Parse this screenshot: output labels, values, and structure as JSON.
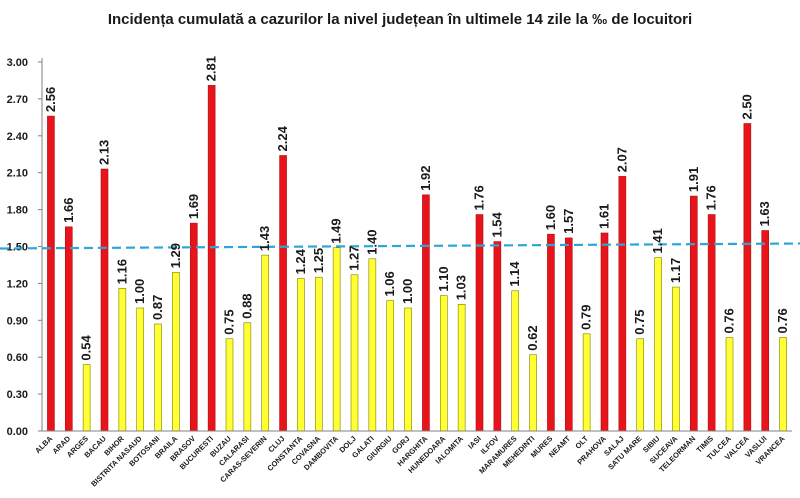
{
  "chart_data": {
    "type": "bar",
    "title": "Incidența cumulată a cazurilor la nivel județean în ultimele 14 zile la ‰ de locuitori",
    "xlabel": "",
    "ylabel": "",
    "ylim": [
      0,
      3.0
    ],
    "yticks": [
      "0.00",
      "0.30",
      "0.60",
      "0.90",
      "1.20",
      "1.50",
      "1.80",
      "2.10",
      "2.40",
      "2.70",
      "3.00"
    ],
    "grid": false,
    "threshold": 1.5,
    "colors": {
      "above": "#e8141b",
      "below": "#ffff33",
      "bar_edge": "#808000",
      "threshold": "#2aa7d8",
      "axis": "#808080"
    },
    "categories": [
      "ALBA",
      "ARAD",
      "ARGES",
      "BACAU",
      "BIHOR",
      "BISTRITA NASAUD",
      "BOTOSANI",
      "BRAILA",
      "BRASOV",
      "BUCURESTI",
      "BUZAU",
      "CALARASI",
      "CARAS-SEVERIN",
      "CLUJ",
      "CONSTANTA",
      "COVASNA",
      "DAMBOVITA",
      "DOLJ",
      "GALATI",
      "GIURGIU",
      "GORJ",
      "HARGHITA",
      "HUNEDOARA",
      "IALOMITA",
      "IASI",
      "ILFOV",
      "MARAMURES",
      "MEHEDINTI",
      "MURES",
      "NEAMT",
      "OLT",
      "PRAHOVA",
      "SALAJ",
      "SATU MARE",
      "SIBIU",
      "SUCEAVA",
      "TELEORMAN",
      "TIMIS",
      "TULCEA",
      "VALCEA",
      "VASLUI",
      "VRANCEA"
    ],
    "values": [
      2.56,
      1.66,
      0.54,
      2.13,
      1.16,
      1.0,
      0.87,
      1.29,
      1.69,
      2.81,
      0.75,
      0.88,
      1.43,
      2.24,
      1.24,
      1.25,
      1.49,
      1.27,
      1.4,
      1.06,
      1.0,
      1.92,
      1.1,
      1.03,
      1.76,
      1.54,
      1.14,
      0.62,
      1.6,
      1.57,
      0.79,
      1.61,
      2.07,
      0.75,
      1.41,
      1.17,
      1.91,
      1.76,
      0.76,
      2.5,
      1.63,
      0.76
    ],
    "labels": [
      "2.56",
      "1.66",
      "0.54",
      "2.13",
      "1.16",
      "1.00",
      "0.87",
      "1.29",
      "1.69",
      "2.81",
      "0.75",
      "0.88",
      "1.43",
      "2.24",
      "1.24",
      "1.25",
      "1.49",
      "1.27",
      "1.40",
      "1.06",
      "1.00",
      "1.92",
      "1.10",
      "1.03",
      "1.76",
      "1.54",
      "1.14",
      "0.62",
      "1.60",
      "1.57",
      "0.79",
      "1.61",
      "2.07",
      "0.75",
      "1.41",
      "1.17",
      "1.91",
      "1.76",
      "0.76",
      "2.50",
      "1.63",
      "0.76"
    ]
  }
}
